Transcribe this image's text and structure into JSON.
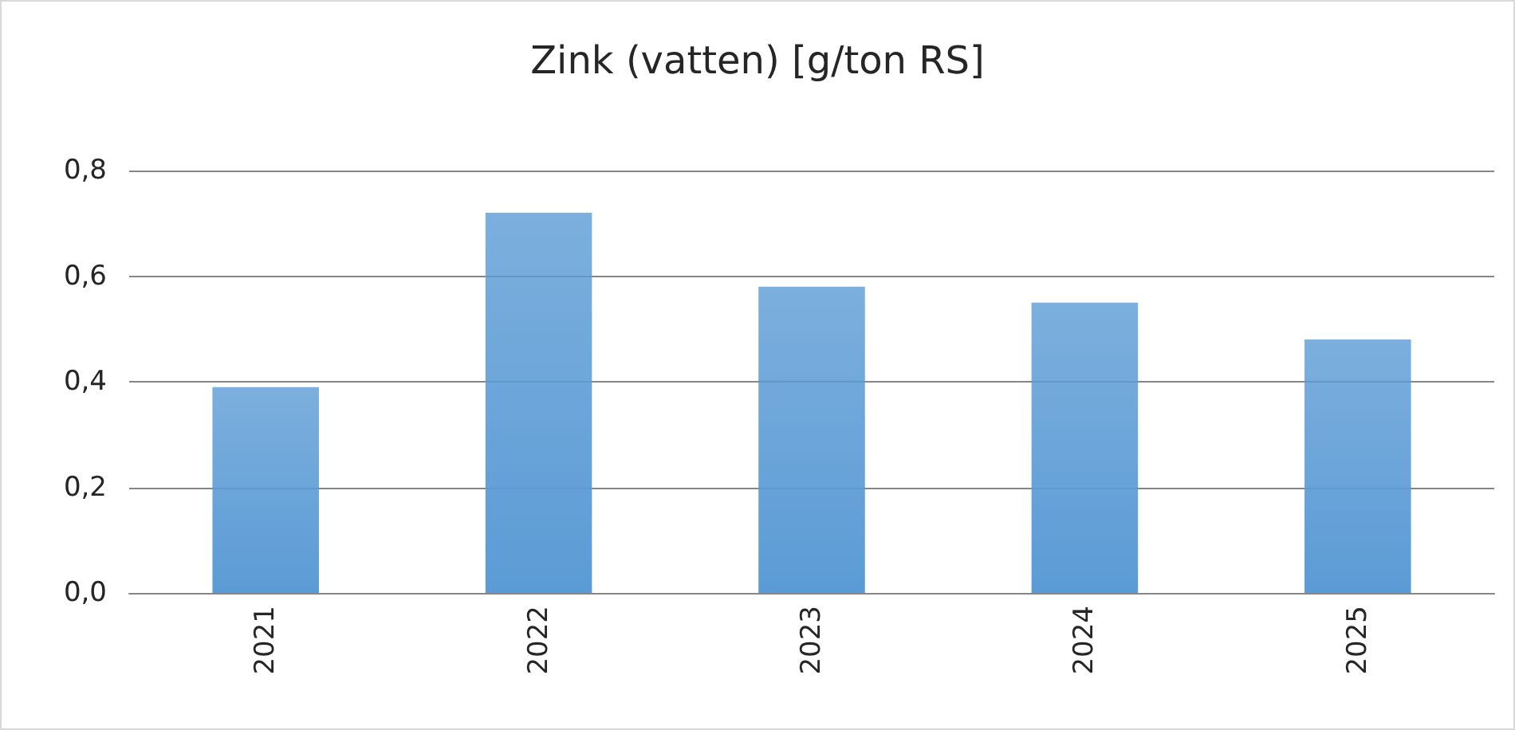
{
  "chart_data": {
    "type": "bar",
    "title": "Zink (vatten) [g/ton RS]",
    "categories": [
      "2021",
      "2022",
      "2023",
      "2024",
      "2025"
    ],
    "values": [
      0.39,
      0.72,
      0.58,
      0.55,
      0.48
    ],
    "color": "#5b9bd5",
    "ylim": [
      0,
      0.8
    ],
    "yticks": [
      {
        "value": 0,
        "label": "0,0"
      },
      {
        "value": 0.2,
        "label": "0,2"
      },
      {
        "value": 0.4,
        "label": "0,4"
      },
      {
        "value": 0.6,
        "label": "0,6"
      },
      {
        "value": 0.8,
        "label": "0,8"
      }
    ],
    "grid": "y"
  }
}
